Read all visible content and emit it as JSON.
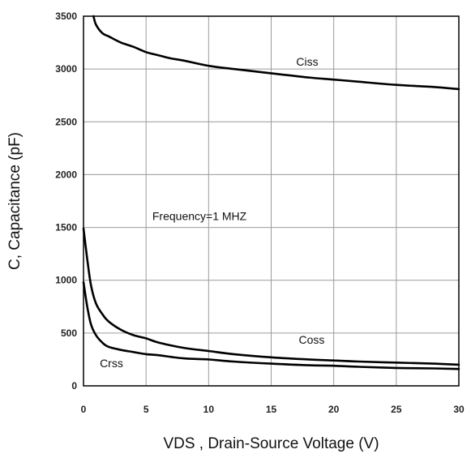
{
  "chart_data": {
    "type": "line",
    "title": "",
    "xlabel": "VDS , Drain-Source Voltage (V)",
    "ylabel": "C, Capacitance (pF)",
    "xlim": [
      0,
      30
    ],
    "ylim": [
      0,
      3500
    ],
    "xticks": [
      0,
      5,
      10,
      15,
      20,
      25,
      30
    ],
    "yticks": [
      0,
      500,
      1000,
      1500,
      2000,
      2500,
      3000,
      3500
    ],
    "grid": true,
    "series": [
      {
        "name": "Ciss",
        "x": [
          0.8,
          1,
          1.5,
          2,
          3,
          4,
          5,
          6,
          7,
          8,
          10,
          12,
          15,
          18,
          20,
          22,
          25,
          28,
          30
        ],
        "y": [
          3500,
          3420,
          3340,
          3310,
          3250,
          3210,
          3160,
          3130,
          3100,
          3080,
          3030,
          3000,
          2960,
          2920,
          2900,
          2880,
          2850,
          2830,
          2810
        ]
      },
      {
        "name": "Coss",
        "x": [
          0,
          0.3,
          0.6,
          1,
          1.5,
          2,
          3,
          4,
          5,
          6,
          8,
          10,
          12,
          15,
          18,
          20,
          22,
          25,
          28,
          30
        ],
        "y": [
          1490,
          1200,
          950,
          780,
          680,
          610,
          530,
          480,
          450,
          410,
          360,
          330,
          300,
          270,
          250,
          240,
          230,
          220,
          210,
          200
        ]
      },
      {
        "name": "Crss",
        "x": [
          0,
          0.3,
          0.6,
          1,
          1.5,
          2,
          3,
          4,
          5,
          6,
          8,
          10,
          12,
          15,
          18,
          20,
          22,
          25,
          28,
          30
        ],
        "y": [
          980,
          750,
          580,
          480,
          410,
          370,
          340,
          320,
          300,
          290,
          260,
          250,
          230,
          210,
          195,
          190,
          180,
          170,
          165,
          160
        ]
      }
    ],
    "annotations": [
      {
        "text": "Ciss",
        "x": 17,
        "y": 3030
      },
      {
        "text": "Coss",
        "x": 17.2,
        "y": 400
      },
      {
        "text": "Crss",
        "x": 1.3,
        "y": 175
      },
      {
        "text": "Frequency=1 MHZ",
        "x": 5.5,
        "y": 1570
      }
    ]
  }
}
